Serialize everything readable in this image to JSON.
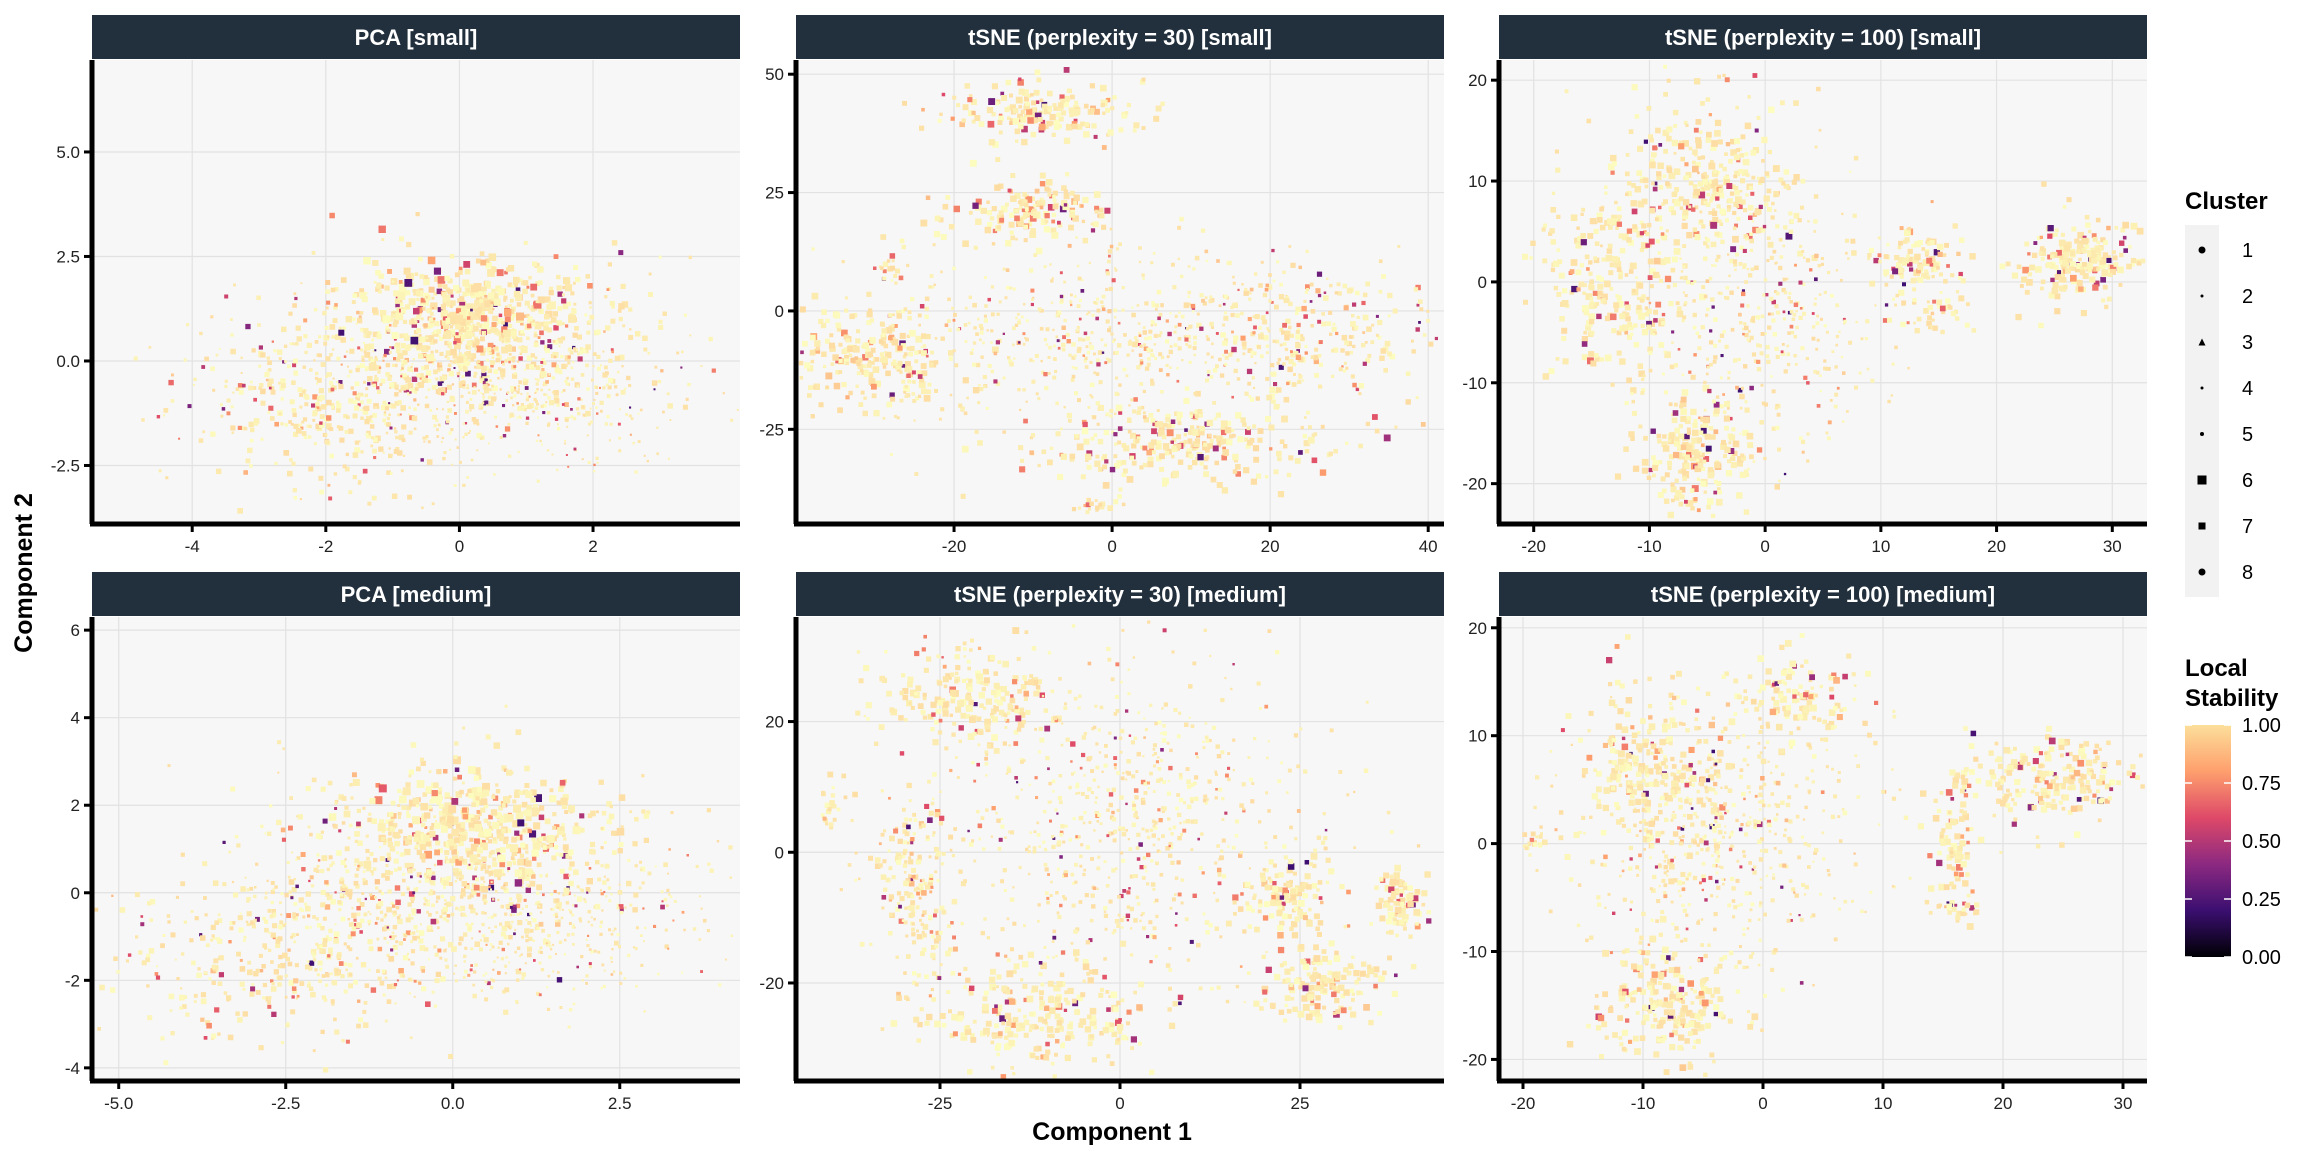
{
  "chart_data": {
    "type": "scatter",
    "xlabel": "Component 1",
    "ylabel": "Component 2",
    "legend": {
      "position": "right",
      "cluster_title": "Cluster",
      "clusters": [
        "1",
        "2",
        "3",
        "4",
        "5",
        "6",
        "7",
        "8"
      ],
      "stability_title_line1": "Local",
      "stability_title_line2": "Stability",
      "stability_ticks": [
        "1.00",
        "0.75",
        "0.50",
        "0.25",
        "0.00"
      ],
      "colormap": [
        "#000004",
        "#3b0f70",
        "#8c2981",
        "#de4968",
        "#fe9f6d",
        "#fcfdbf"
      ]
    },
    "panels": [
      {
        "title": "PCA [small]",
        "xlim": [
          -5.5,
          4.2
        ],
        "ylim": [
          -3.9,
          7.2
        ],
        "xticks": [
          -4,
          -2,
          0,
          2
        ],
        "xticklabels": [
          "-4",
          "-2",
          "0",
          "2"
        ],
        "yticks": [
          -2.5,
          0.0,
          2.5,
          5.0
        ],
        "yticklabels": [
          "-2.5",
          "0.0",
          "2.5",
          "5.0"
        ],
        "show_xticks": true,
        "clusters": [
          {
            "cx": 0.2,
            "cy": 0.5,
            "sx": 1.3,
            "sy": 1.0,
            "n": 700,
            "size": 5
          },
          {
            "cx": -2.0,
            "cy": -1.2,
            "sx": 1.1,
            "sy": 0.9,
            "n": 300,
            "size": 5
          },
          {
            "cx": 1.0,
            "cy": -1.0,
            "sx": 1.2,
            "sy": 0.8,
            "n": 250,
            "size": 3
          },
          {
            "cx": 0.0,
            "cy": 1.2,
            "sx": 0.8,
            "sy": 0.6,
            "n": 250,
            "size": 7
          },
          {
            "cx": -0.5,
            "cy": -0.3,
            "sx": 1.6,
            "sy": 1.0,
            "n": 200,
            "size": 3
          }
        ]
      },
      {
        "title": "tSNE (perplexity = 30) [small]",
        "xlim": [
          -40,
          42
        ],
        "ylim": [
          -45,
          53
        ],
        "xticks": [
          -20,
          0,
          20,
          40
        ],
        "xticklabels": [
          "-20",
          "0",
          "20",
          "40"
        ],
        "yticks": [
          -25,
          0,
          25,
          50
        ],
        "yticklabels": [
          "-25",
          "0",
          "25",
          "50"
        ],
        "show_xticks": true,
        "clusters": [
          {
            "cx": -8,
            "cy": 42,
            "sx": 6,
            "sy": 3,
            "n": 180,
            "size": 6
          },
          {
            "cx": -10,
            "cy": 21,
            "sx": 5,
            "sy": 3,
            "n": 150,
            "size": 6
          },
          {
            "cx": -30,
            "cy": -10,
            "sx": 5,
            "sy": 5,
            "n": 220,
            "size": 6
          },
          {
            "cx": 0,
            "cy": -5,
            "sx": 14,
            "sy": 10,
            "n": 600,
            "size": 4
          },
          {
            "cx": 10,
            "cy": -28,
            "sx": 10,
            "sy": 4,
            "n": 280,
            "size": 6
          },
          {
            "cx": 25,
            "cy": -5,
            "sx": 8,
            "sy": 7,
            "n": 220,
            "size": 5
          },
          {
            "cx": -28,
            "cy": 10,
            "sx": 1,
            "sy": 2,
            "n": 20,
            "size": 5
          },
          {
            "cx": -2,
            "cy": -41,
            "sx": 2,
            "sy": 1,
            "n": 20,
            "size": 5
          }
        ]
      },
      {
        "title": "tSNE (perplexity = 100) [small]",
        "xlim": [
          -23,
          33
        ],
        "ylim": [
          -24,
          22
        ],
        "xticks": [
          -20,
          -10,
          0,
          10,
          20,
          30
        ],
        "xticklabels": [
          "-20",
          "-10",
          "0",
          "10",
          "20",
          "30"
        ],
        "yticks": [
          -20,
          -10,
          0,
          10,
          20
        ],
        "yticklabels": [
          "-20",
          "-10",
          "0",
          "10",
          "20"
        ],
        "show_xticks": true,
        "clusters": [
          {
            "cx": -13,
            "cy": 0,
            "sx": 3,
            "sy": 5,
            "n": 260,
            "size": 6
          },
          {
            "cx": -5,
            "cy": 10,
            "sx": 4,
            "sy": 4,
            "n": 300,
            "size": 6
          },
          {
            "cx": 0,
            "cy": -3,
            "sx": 5,
            "sy": 7,
            "n": 400,
            "size": 4
          },
          {
            "cx": -6,
            "cy": -17,
            "sx": 2.5,
            "sy": 3,
            "n": 200,
            "size": 6
          },
          {
            "cx": 13,
            "cy": 2,
            "sx": 2,
            "sy": 1.5,
            "n": 100,
            "size": 6
          },
          {
            "cx": 27,
            "cy": 2,
            "sx": 2.5,
            "sy": 2,
            "n": 200,
            "size": 6
          },
          {
            "cx": 14,
            "cy": -3,
            "sx": 2,
            "sy": 1,
            "n": 40,
            "size": 5
          }
        ]
      },
      {
        "title": "PCA [medium]",
        "xlim": [
          -5.4,
          4.3
        ],
        "ylim": [
          -4.3,
          6.3
        ],
        "xticks": [
          -5.0,
          -2.5,
          0.0,
          2.5
        ],
        "xticklabels": [
          "-5.0",
          "-2.5",
          "0.0",
          "2.5"
        ],
        "yticks": [
          -4,
          -2,
          0,
          2,
          4,
          6
        ],
        "yticklabels": [
          "-4",
          "-2",
          "0",
          "2",
          "4",
          "6"
        ],
        "show_xticks": true,
        "clusters": [
          {
            "cx": 0.0,
            "cy": 0.5,
            "sx": 1.5,
            "sy": 1.2,
            "n": 700,
            "size": 5
          },
          {
            "cx": -2.5,
            "cy": -1.5,
            "sx": 1.3,
            "sy": 1.0,
            "n": 350,
            "size": 5
          },
          {
            "cx": 1.5,
            "cy": -1.0,
            "sx": 1.3,
            "sy": 0.9,
            "n": 250,
            "size": 3
          },
          {
            "cx": 0.3,
            "cy": 1.5,
            "sx": 0.8,
            "sy": 0.6,
            "n": 250,
            "size": 7
          },
          {
            "cx": -0.5,
            "cy": -0.5,
            "sx": 1.8,
            "sy": 1.2,
            "n": 200,
            "size": 3
          }
        ]
      },
      {
        "title": "tSNE (perplexity = 30) [medium]",
        "xlim": [
          -45,
          45
        ],
        "ylim": [
          -35,
          36
        ],
        "xticks": [
          -25,
          0,
          25
        ],
        "xticklabels": [
          "-25",
          "0",
          "25"
        ],
        "yticks": [
          -20,
          0,
          20
        ],
        "yticklabels": [
          "-20",
          "0",
          "20"
        ],
        "show_xticks": true,
        "clusters": [
          {
            "cx": -20,
            "cy": 24,
            "sx": 6,
            "sy": 4,
            "n": 200,
            "size": 6
          },
          {
            "cx": -28,
            "cy": -5,
            "sx": 3,
            "sy": 8,
            "n": 200,
            "size": 5
          },
          {
            "cx": 0,
            "cy": 5,
            "sx": 13,
            "sy": 13,
            "n": 700,
            "size": 4
          },
          {
            "cx": -10,
            "cy": -25,
            "sx": 8,
            "sy": 4,
            "n": 250,
            "size": 6
          },
          {
            "cx": 23,
            "cy": -6,
            "sx": 3,
            "sy": 3,
            "n": 120,
            "size": 6
          },
          {
            "cx": 28,
            "cy": -20,
            "sx": 4,
            "sy": 3,
            "n": 150,
            "size": 6
          },
          {
            "cx": 39,
            "cy": -8,
            "sx": 2,
            "sy": 3,
            "n": 80,
            "size": 6
          },
          {
            "cx": -40,
            "cy": 7,
            "sx": 1,
            "sy": 2,
            "n": 20,
            "size": 5
          }
        ]
      },
      {
        "title": "tSNE (perplexity = 100) [medium]",
        "xlim": [
          -22,
          32
        ],
        "ylim": [
          -22,
          21
        ],
        "xticks": [
          -20,
          -10,
          0,
          10,
          20,
          30
        ],
        "xticklabels": [
          "-20",
          "-10",
          "0",
          "10",
          "20",
          "30"
        ],
        "yticks": [
          -20,
          -10,
          0,
          10,
          20
        ],
        "yticklabels": [
          "-20",
          "-10",
          "0",
          "10",
          "20"
        ],
        "show_xticks": true,
        "clusters": [
          {
            "cx": -9,
            "cy": 7,
            "sx": 3,
            "sy": 4,
            "n": 250,
            "size": 6
          },
          {
            "cx": -3,
            "cy": 0,
            "sx": 6,
            "sy": 6,
            "n": 500,
            "size": 4
          },
          {
            "cx": -8,
            "cy": -15,
            "sx": 3,
            "sy": 3,
            "n": 220,
            "size": 6
          },
          {
            "cx": 3,
            "cy": 13,
            "sx": 3,
            "sy": 2,
            "n": 120,
            "size": 6
          },
          {
            "cx": 24,
            "cy": 6,
            "sx": 4,
            "sy": 2,
            "n": 220,
            "size": 6
          },
          {
            "cx": 16,
            "cy": 0,
            "sx": 1,
            "sy": 3,
            "n": 80,
            "size": 6
          },
          {
            "cx": 16,
            "cy": -6,
            "sx": 1,
            "sy": 0.5,
            "n": 25,
            "size": 5
          },
          {
            "cx": -19,
            "cy": 0,
            "sx": 0.5,
            "sy": 1.5,
            "n": 20,
            "size": 5
          }
        ]
      }
    ]
  }
}
